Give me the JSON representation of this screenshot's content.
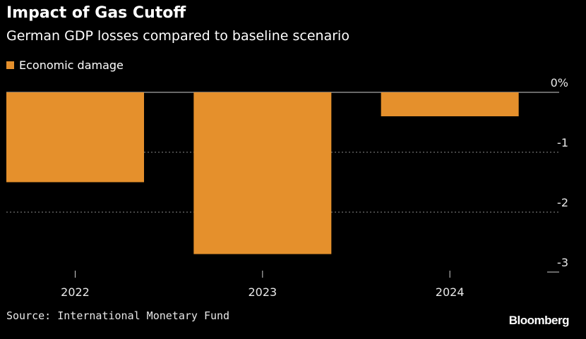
{
  "header": {
    "title": "Impact of Gas Cutoff",
    "subtitle": "German GDP losses compared to baseline scenario"
  },
  "legend": {
    "label": "Economic damage"
  },
  "colors": {
    "bar": "#E5902C",
    "background": "#000000",
    "grid": "#8a8a8a"
  },
  "chart_data": {
    "type": "bar",
    "categories": [
      "2022",
      "2023",
      "2024"
    ],
    "series": [
      {
        "name": "Economic damage",
        "values": [
          -1.5,
          -2.7,
          -0.4
        ]
      }
    ],
    "title": "Impact of Gas Cutoff",
    "subtitle": "German GDP losses compared to baseline scenario",
    "ylim": [
      -3,
      0
    ],
    "yticks": [
      0,
      -1,
      -2,
      -3
    ],
    "ytick_labels": [
      "0%",
      "-1",
      "-2",
      "-3"
    ],
    "grid": true,
    "legend_position": "top-left"
  },
  "footer": {
    "source": "Source: International Monetary Fund",
    "brand": "Bloomberg"
  }
}
